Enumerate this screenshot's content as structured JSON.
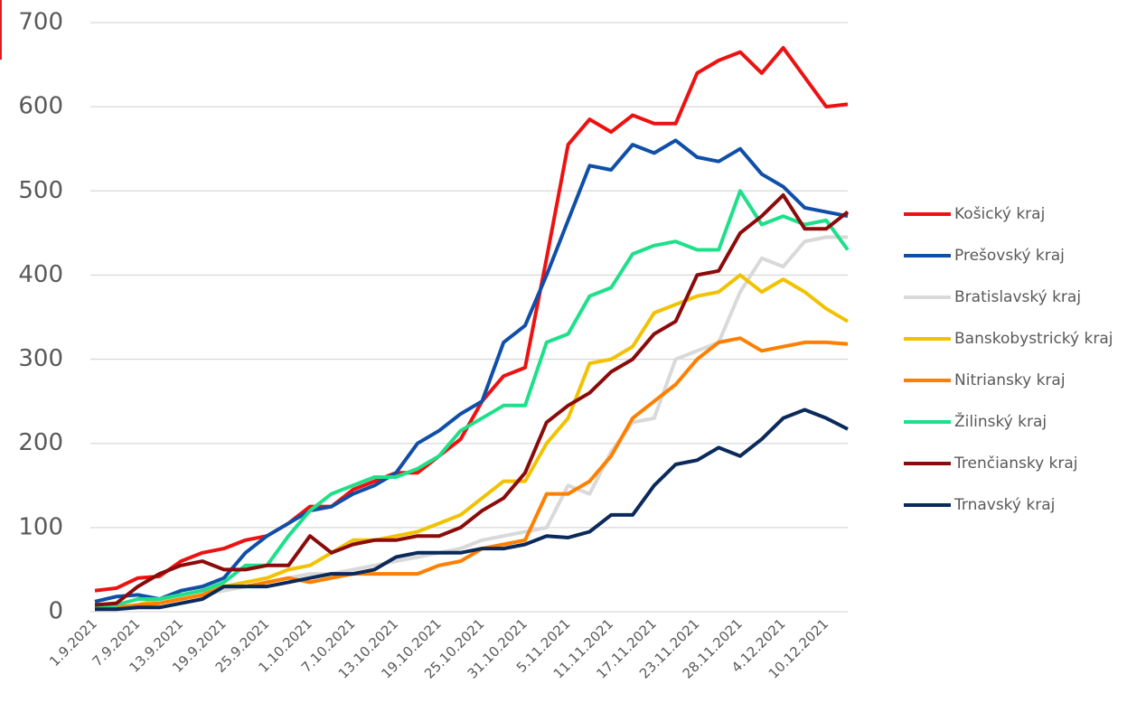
{
  "chart_data": {
    "type": "line",
    "categories": [
      "1.9.2021",
      null,
      "7.9.2021",
      null,
      "13.9.2021",
      null,
      "19.9.2021",
      null,
      "25.9.2021",
      null,
      "1.10.2021",
      null,
      "7.10.2021",
      null,
      "13.10.2021",
      null,
      "19.10.2021",
      null,
      "25.10.2021",
      null,
      "31.10.2021",
      null,
      "5.11.2021",
      null,
      "11.11.2021",
      null,
      "17.11.2021",
      null,
      "23.11.2021",
      null,
      "28.11.2021",
      null,
      "4.12.2021",
      null,
      "10.12.2021",
      null
    ],
    "series": [
      {
        "name": "Košický kraj",
        "color": "#ee1111",
        "values": [
          25,
          28,
          40,
          42,
          60,
          70,
          75,
          85,
          90,
          105,
          125,
          125,
          145,
          155,
          165,
          165,
          185,
          205,
          250,
          280,
          290,
          420,
          555,
          585,
          570,
          590,
          580,
          580,
          640,
          655,
          665,
          640,
          670,
          635,
          600,
          603
        ]
      },
      {
        "name": "Prešovský kraj",
        "color": "#0f4fa8",
        "values": [
          12,
          18,
          20,
          15,
          25,
          30,
          40,
          70,
          90,
          105,
          120,
          125,
          140,
          150,
          165,
          200,
          215,
          235,
          250,
          320,
          340,
          400,
          465,
          530,
          525,
          555,
          545,
          560,
          540,
          535,
          550,
          520,
          505,
          480,
          475,
          470
        ]
      },
      {
        "name": "Bratislavský kraj",
        "color": "#d9d9d9",
        "values": [
          5,
          5,
          8,
          12,
          15,
          20,
          25,
          30,
          35,
          40,
          45,
          45,
          50,
          55,
          60,
          65,
          70,
          75,
          85,
          90,
          95,
          100,
          150,
          140,
          190,
          225,
          230,
          300,
          310,
          320,
          380,
          420,
          410,
          440,
          445,
          445
        ]
      },
      {
        "name": "Banskobystrický kraj",
        "color": "#f2c200",
        "values": [
          3,
          5,
          8,
          15,
          20,
          25,
          30,
          35,
          40,
          50,
          55,
          70,
          85,
          85,
          90,
          95,
          105,
          115,
          135,
          155,
          155,
          200,
          230,
          295,
          300,
          315,
          355,
          365,
          375,
          380,
          400,
          380,
          395,
          380,
          360,
          345
        ]
      },
      {
        "name": "Nitriansky kraj",
        "color": "#ff8000",
        "values": [
          3,
          5,
          8,
          10,
          15,
          20,
          30,
          30,
          35,
          40,
          35,
          40,
          45,
          45,
          45,
          45,
          55,
          60,
          75,
          80,
          85,
          140,
          140,
          155,
          185,
          230,
          250,
          270,
          300,
          320,
          325,
          310,
          315,
          320,
          320,
          318
        ]
      },
      {
        "name": "Žilinský kraj",
        "color": "#1ee08a",
        "values": [
          5,
          8,
          15,
          15,
          20,
          25,
          35,
          55,
          55,
          90,
          120,
          140,
          150,
          160,
          160,
          170,
          185,
          215,
          230,
          245,
          245,
          320,
          330,
          375,
          385,
          425,
          435,
          440,
          430,
          430,
          500,
          460,
          470,
          460,
          465,
          430
        ]
      },
      {
        "name": "Trenčiansky kraj",
        "color": "#8b0a0a",
        "values": [
          8,
          10,
          30,
          45,
          55,
          60,
          50,
          50,
          55,
          55,
          90,
          70,
          80,
          85,
          85,
          90,
          90,
          100,
          120,
          135,
          165,
          225,
          245,
          260,
          285,
          300,
          330,
          345,
          400,
          405,
          450,
          470,
          495,
          455,
          455,
          475
        ]
      },
      {
        "name": "Trnavský kraj",
        "color": "#0b2a5a",
        "values": [
          3,
          3,
          5,
          5,
          10,
          15,
          30,
          30,
          30,
          35,
          40,
          45,
          45,
          50,
          65,
          70,
          70,
          70,
          75,
          75,
          80,
          90,
          88,
          95,
          115,
          115,
          150,
          175,
          180,
          195,
          185,
          205,
          230,
          240,
          230,
          217
        ]
      }
    ],
    "ylim": [
      0,
      700
    ],
    "yticks": [
      0,
      100,
      200,
      300,
      400,
      500,
      600,
      700
    ],
    "grid": true,
    "legend": "right"
  }
}
